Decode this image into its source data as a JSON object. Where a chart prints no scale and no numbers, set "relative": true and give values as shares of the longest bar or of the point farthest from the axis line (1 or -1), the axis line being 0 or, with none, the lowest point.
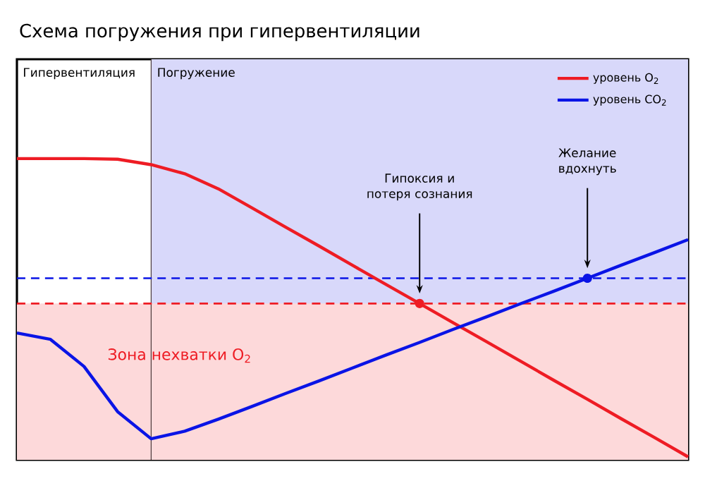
{
  "chart_data": {
    "type": "line",
    "title": "Схема погружения при гипервентиляции",
    "relative": true,
    "categories": [
      null,
      null,
      null,
      null,
      null,
      null,
      null,
      null,
      null,
      null,
      null,
      null,
      null,
      null,
      null,
      null,
      null,
      null,
      null,
      null,
      null
    ],
    "series": [
      {
        "name": "уровень O$_{2}$",
        "color": "#ee1c24",
        "values": [
          1.0,
          1.0,
          1.0,
          0.998,
          0.98,
          0.95,
          0.9,
          0.837,
          0.773,
          0.71,
          0.646,
          0.582,
          0.519,
          0.455,
          0.392,
          0.328,
          0.264,
          0.201,
          0.137,
          0.074,
          0.01
        ]
      },
      {
        "name": "уровень CO$_{2}$",
        "color": "#0a14e6",
        "values": [
          0.421,
          0.4,
          0.31,
          0.16,
          0.07,
          0.095,
          0.135,
          0.177,
          0.22,
          0.262,
          0.305,
          0.348,
          0.39,
          0.433,
          0.475,
          0.518,
          0.56,
          0.603,
          0.646,
          0.688,
          0.731
        ]
      }
    ],
    "ref_lines": [
      {
        "axis": "y",
        "value": 0.519,
        "color": "#ee1c24",
        "line_style": "dashed"
      },
      {
        "axis": "y",
        "value": 0.603,
        "color": "#0a14e6",
        "line_style": "dashed"
      }
    ],
    "bands": [
      {
        "axis": "y",
        "from": 0,
        "to": 0.519,
        "label": "Зона нехватки O$_{2}$",
        "color": "#fdd9da"
      }
    ],
    "annotations": [
      "Гипервентиляция",
      "Погружение",
      "Гипоксия и потеря сознания",
      "Желание вдохнуть"
    ],
    "legend": "top right",
    "line_style": "solid"
  }
}
